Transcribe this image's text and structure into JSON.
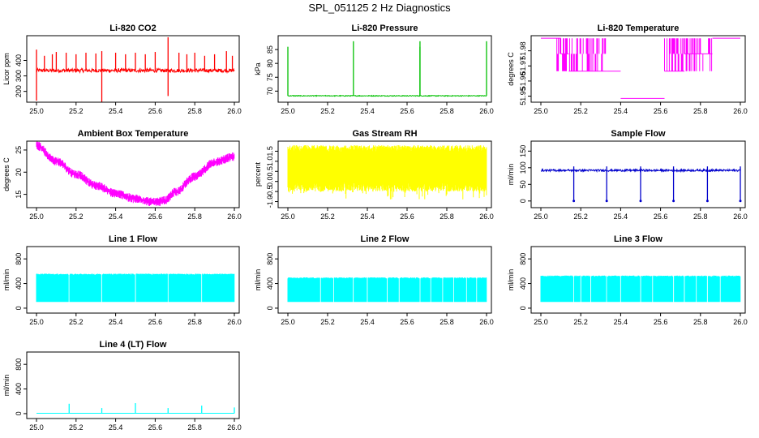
{
  "page": {
    "title": "SPL_051125  2 Hz Diagnostics"
  },
  "chart_data": [
    {
      "type": "line",
      "title": "Li-820 CO2",
      "ylabel": "Licor ppm",
      "xlim": [
        25.0,
        26.0
      ],
      "ylim": [
        130,
        560
      ],
      "xticks": [
        25.0,
        25.2,
        25.4,
        25.6,
        25.8,
        26.0
      ],
      "xtick_labels": [
        "25.0",
        "25.2",
        "25.4",
        "25.6",
        "25.8",
        "26.0"
      ],
      "yticks": [
        200,
        300,
        400
      ],
      "ytick_labels": [
        "200",
        "300",
        "400"
      ],
      "color": "#ff0000",
      "series": [
        {
          "baseline": 335,
          "noise": 12,
          "spikes": [
            {
              "x": 25.0,
              "y": 470
            },
            {
              "x": 25.0,
              "y": 140
            },
            {
              "x": 25.04,
              "y": 430
            },
            {
              "x": 25.08,
              "y": 440
            },
            {
              "x": 25.1,
              "y": 455
            },
            {
              "x": 25.15,
              "y": 450
            },
            {
              "x": 25.2,
              "y": 440
            },
            {
              "x": 25.25,
              "y": 450
            },
            {
              "x": 25.3,
              "y": 445
            },
            {
              "x": 25.33,
              "y": 460
            },
            {
              "x": 25.33,
              "y": 120
            },
            {
              "x": 25.4,
              "y": 450
            },
            {
              "x": 25.45,
              "y": 440
            },
            {
              "x": 25.5,
              "y": 450
            },
            {
              "x": 25.55,
              "y": 440
            },
            {
              "x": 25.6,
              "y": 455
            },
            {
              "x": 25.665,
              "y": 550
            },
            {
              "x": 25.665,
              "y": 170
            },
            {
              "x": 25.72,
              "y": 450
            },
            {
              "x": 25.76,
              "y": 440
            },
            {
              "x": 25.8,
              "y": 450
            },
            {
              "x": 25.85,
              "y": 430
            },
            {
              "x": 25.9,
              "y": 440
            },
            {
              "x": 25.96,
              "y": 460
            },
            {
              "x": 25.99,
              "y": 430
            }
          ]
        }
      ]
    },
    {
      "type": "line",
      "title": "Li-820 Pressure",
      "ylabel": "kPa",
      "xlim": [
        25.0,
        26.0
      ],
      "ylim": [
        66,
        90
      ],
      "xticks": [
        25.0,
        25.2,
        25.4,
        25.6,
        25.8,
        26.0
      ],
      "xtick_labels": [
        "25.0",
        "25.2",
        "25.4",
        "25.6",
        "25.8",
        "26.0"
      ],
      "yticks": [
        70,
        75,
        80,
        85
      ],
      "ytick_labels": [
        "70",
        "75",
        "80",
        "85"
      ],
      "color": "#00c000",
      "series": [
        {
          "baseline": 68.3,
          "noise": 0.15,
          "spikes": [
            {
              "x": 25.0,
              "y": 86
            },
            {
              "x": 25.33,
              "y": 88
            },
            {
              "x": 25.665,
              "y": 88
            },
            {
              "x": 25.665,
              "y": 86
            },
            {
              "x": 26.0,
              "y": 88
            }
          ]
        }
      ]
    },
    {
      "type": "line",
      "title": "Li-820 Temperature",
      "ylabel": "degrees C",
      "xlim": [
        25.0,
        26.0
      ],
      "ylim": [
        51.946,
        51.99
      ],
      "xticks": [
        25.0,
        25.2,
        25.4,
        25.6,
        25.8,
        26.0
      ],
      "xtick_labels": [
        "25.0",
        "25.2",
        "25.4",
        "25.6",
        "25.8",
        "26.0"
      ],
      "yticks": [
        51.95,
        51.96,
        51.97,
        51.98
      ],
      "ytick_labels": [
        "51.95",
        "51.96",
        "51.97",
        "51.98"
      ],
      "color": "#ff00ff",
      "series": [
        {
          "levels": [
            51.9883,
            51.978,
            51.9665,
            51.9485
          ],
          "segments": [
            {
              "from": 25.0,
              "to": 25.1,
              "level": 51.9883
            },
            {
              "from": 25.1,
              "to": 25.14,
              "level": 51.978
            },
            {
              "from": 25.14,
              "to": 25.33,
              "level": 51.9665
            },
            {
              "from": 25.33,
              "to": 25.4,
              "level": 51.9665
            },
            {
              "from": 25.4,
              "to": 25.62,
              "level": 51.9485
            },
            {
              "from": 25.62,
              "to": 25.72,
              "level": 51.9665
            },
            {
              "from": 25.72,
              "to": 25.86,
              "level": 51.978
            },
            {
              "from": 25.86,
              "to": 26.0,
              "level": 51.9883
            }
          ]
        }
      ]
    },
    {
      "type": "line",
      "title": "Ambient Box Temperature",
      "ylabel": "degrees C",
      "xlim": [
        25.0,
        26.0
      ],
      "ylim": [
        12,
        27
      ],
      "xticks": [
        25.0,
        25.2,
        25.4,
        25.6,
        25.8,
        26.0
      ],
      "xtick_labels": [
        "25.0",
        "25.2",
        "25.4",
        "25.6",
        "25.8",
        "26.0"
      ],
      "yticks": [
        15,
        20,
        25
      ],
      "ytick_labels": [
        "15",
        "20",
        "25"
      ],
      "color": "#ff00ff",
      "series": [
        {
          "x": [
            25.0,
            25.1,
            25.2,
            25.3,
            25.4,
            25.5,
            25.6,
            25.65,
            25.7,
            25.8,
            25.9,
            26.0
          ],
          "y": [
            26,
            22.5,
            19.5,
            17,
            15.2,
            14,
            13.2,
            13.6,
            15.5,
            19,
            22.3,
            23.5
          ],
          "band": 1.0
        }
      ]
    },
    {
      "type": "line",
      "title": "Gas Stream RH",
      "ylabel": "percent",
      "xlim": [
        25.0,
        26.0
      ],
      "ylim": [
        -1.3,
        2.0
      ],
      "xticks": [
        25.0,
        25.2,
        25.4,
        25.6,
        25.8,
        26.0
      ],
      "xtick_labels": [
        "25.0",
        "25.2",
        "25.4",
        "25.6",
        "25.8",
        "26.0"
      ],
      "yticks": [
        -1.0,
        -0.5,
        0.0,
        0.5,
        1.0,
        1.5
      ],
      "ytick_labels": [
        "-1.0",
        "-0.5",
        "0.0",
        "0.5",
        "1.0",
        "1.5"
      ],
      "color": "#ffff00",
      "series": [
        {
          "band_low": -0.5,
          "band_high": 1.8
        }
      ]
    },
    {
      "type": "line",
      "title": "Sample Flow",
      "ylabel": "ml/min",
      "xlim": [
        25.0,
        26.0
      ],
      "ylim": [
        -20,
        180
      ],
      "xticks": [
        25.0,
        25.2,
        25.4,
        25.6,
        25.8,
        26.0
      ],
      "xtick_labels": [
        "25.0",
        "25.2",
        "25.4",
        "25.6",
        "25.8",
        "26.0"
      ],
      "yticks": [
        0,
        50,
        100,
        150
      ],
      "ytick_labels": [
        "0",
        "50",
        "100",
        "150"
      ],
      "color": "#0000cc",
      "series": [
        {
          "baseline": 92,
          "noise": 3,
          "dips": [
            25.165,
            25.33,
            25.5,
            25.665,
            25.835,
            26.0
          ]
        }
      ]
    },
    {
      "type": "line",
      "title": "Line 1 Flow",
      "ylabel": "ml/min",
      "xlim": [
        25.0,
        26.0
      ],
      "ylim": [
        -80,
        1000
      ],
      "xticks": [
        25.0,
        25.2,
        25.4,
        25.6,
        25.8,
        26.0
      ],
      "xtick_labels": [
        "25.0",
        "25.2",
        "25.4",
        "25.6",
        "25.8",
        "26.0"
      ],
      "yticks": [
        0,
        400,
        800
      ],
      "ytick_labels": [
        "0",
        "400",
        "800"
      ],
      "color": "#00ffff",
      "series": [
        {
          "band_low": 100,
          "band_high": 560,
          "gaps": [
            25.165,
            25.33,
            25.5,
            25.665,
            25.835
          ]
        }
      ]
    },
    {
      "type": "line",
      "title": "Line 2 Flow",
      "ylabel": "ml/min",
      "xlim": [
        25.0,
        26.0
      ],
      "ylim": [
        -80,
        1000
      ],
      "xticks": [
        25.0,
        25.2,
        25.4,
        25.6,
        25.8,
        26.0
      ],
      "xtick_labels": [
        "25.0",
        "25.2",
        "25.4",
        "25.6",
        "25.8",
        "26.0"
      ],
      "yticks": [
        0,
        400,
        800
      ],
      "ytick_labels": [
        "0",
        "400",
        "800"
      ],
      "color": "#00ffff",
      "series": [
        {
          "band_low": 100,
          "band_high": 500,
          "gaps": [
            25.165,
            25.23,
            25.33,
            25.4,
            25.5,
            25.56,
            25.665,
            25.72,
            25.78,
            25.835,
            25.9,
            25.95
          ]
        }
      ]
    },
    {
      "type": "line",
      "title": "Line 3 Flow",
      "ylabel": "ml/min",
      "xlim": [
        25.0,
        26.0
      ],
      "ylim": [
        -80,
        1000
      ],
      "xticks": [
        25.0,
        25.2,
        25.4,
        25.6,
        25.8,
        26.0
      ],
      "xtick_labels": [
        "25.0",
        "25.2",
        "25.4",
        "25.6",
        "25.8",
        "26.0"
      ],
      "yticks": [
        0,
        400,
        800
      ],
      "ytick_labels": [
        "0",
        "400",
        "800"
      ],
      "color": "#00ffff",
      "series": [
        {
          "band_low": 100,
          "band_high": 530,
          "gaps": [
            25.165,
            25.2,
            25.25,
            25.33,
            25.4,
            25.5,
            25.56,
            25.665,
            25.72,
            25.78,
            25.835,
            25.9
          ]
        }
      ]
    },
    {
      "type": "line",
      "title": "Line 4 (LT) Flow",
      "ylabel": "ml/min",
      "xlim": [
        25.0,
        26.0
      ],
      "ylim": [
        -80,
        1000
      ],
      "xticks": [
        25.0,
        25.2,
        25.4,
        25.6,
        25.8,
        26.0
      ],
      "xtick_labels": [
        "25.0",
        "25.2",
        "25.4",
        "25.6",
        "25.8",
        "26.0"
      ],
      "yticks": [
        0,
        400,
        800
      ],
      "ytick_labels": [
        "0",
        "400",
        "800"
      ],
      "color": "#00ffff",
      "series": [
        {
          "baseline": 5,
          "spikes": [
            {
              "x": 25.165,
              "y": 160
            },
            {
              "x": 25.33,
              "y": 90
            },
            {
              "x": 25.5,
              "y": 170
            },
            {
              "x": 25.665,
              "y": 90
            },
            {
              "x": 25.835,
              "y": 130
            },
            {
              "x": 26.0,
              "y": 100
            }
          ]
        }
      ]
    }
  ]
}
